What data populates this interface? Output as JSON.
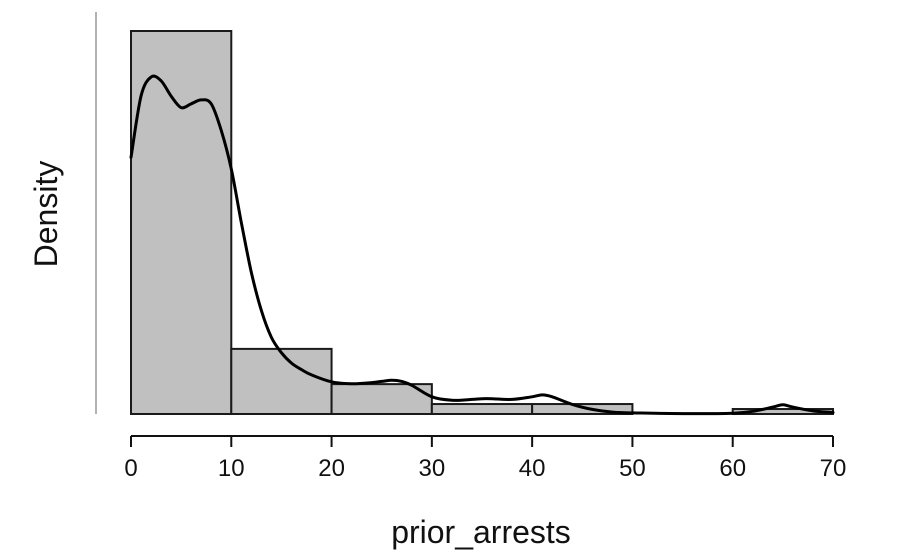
{
  "chart_data": {
    "type": "bar",
    "title": "",
    "xlabel": "prior_arrests",
    "ylabel": "Density",
    "xlim": [
      0,
      70
    ],
    "ylim": [
      0,
      1
    ],
    "xticks": [
      "0",
      "10",
      "20",
      "30",
      "40",
      "50",
      "60",
      "70"
    ],
    "yticks_shown": false,
    "grid": false,
    "bins": [
      {
        "start": 0,
        "end": 10,
        "height": 1.0
      },
      {
        "start": 10,
        "end": 20,
        "height": 0.17
      },
      {
        "start": 20,
        "end": 30,
        "height": 0.078
      },
      {
        "start": 30,
        "end": 40,
        "height": 0.026
      },
      {
        "start": 40,
        "end": 50,
        "height": 0.026
      },
      {
        "start": 50,
        "end": 60,
        "height": 0.0
      },
      {
        "start": 60,
        "end": 70,
        "height": 0.013
      }
    ],
    "density_curve": {
      "x": [
        0,
        1,
        2,
        3,
        4,
        5,
        6,
        7,
        8,
        9,
        10,
        11,
        12,
        13,
        14,
        15,
        16,
        17,
        18,
        20,
        22,
        24,
        25,
        26,
        27,
        28,
        30,
        32,
        34,
        35,
        36,
        38,
        40,
        41,
        42,
        44,
        46,
        48,
        50,
        55,
        60,
        62,
        64,
        65,
        66,
        68,
        70
      ],
      "y": [
        0.67,
        0.83,
        0.88,
        0.87,
        0.83,
        0.8,
        0.81,
        0.82,
        0.81,
        0.74,
        0.64,
        0.5,
        0.37,
        0.27,
        0.2,
        0.16,
        0.133,
        0.116,
        0.102,
        0.084,
        0.079,
        0.082,
        0.085,
        0.088,
        0.085,
        0.075,
        0.045,
        0.036,
        0.038,
        0.04,
        0.04,
        0.038,
        0.045,
        0.05,
        0.045,
        0.025,
        0.012,
        0.005,
        0.003,
        0.001,
        0.002,
        0.007,
        0.018,
        0.024,
        0.018,
        0.008,
        0.004
      ]
    },
    "colors": {
      "bar_fill": "#c0c0c0",
      "bar_stroke": "#1a1a1a",
      "curve": "#000000",
      "axis": "#111111",
      "left_axis": "#999999"
    }
  }
}
